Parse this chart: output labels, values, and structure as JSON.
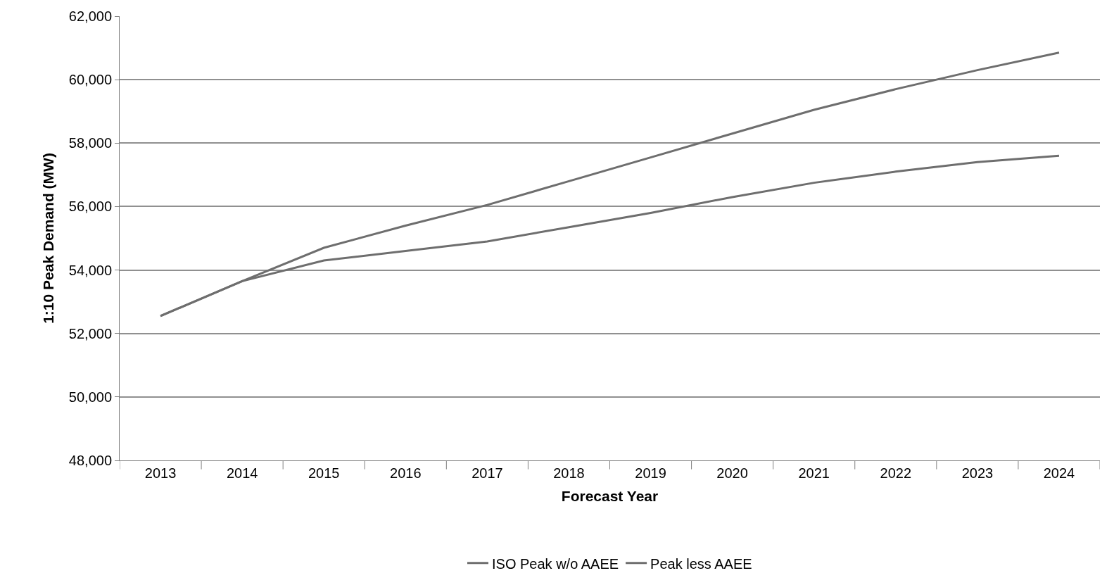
{
  "chart_data": {
    "type": "line",
    "xlabel": "Forecast Year",
    "ylabel": "1:10 Peak Demand (MW)",
    "categories": [
      "2013",
      "2014",
      "2015",
      "2016",
      "2017",
      "2018",
      "2019",
      "2020",
      "2021",
      "2022",
      "2023",
      "2024"
    ],
    "series": [
      {
        "name": "ISO Peak w/o AAEE",
        "color": "#6e6e6e",
        "values": [
          52550,
          53650,
          54700,
          55400,
          56050,
          56800,
          57550,
          58300,
          59050,
          59700,
          60300,
          60850
        ]
      },
      {
        "name": "Peak less AAEE",
        "color": "#6e6e6e",
        "values": [
          52550,
          53650,
          54300,
          54600,
          54900,
          55350,
          55800,
          56300,
          56750,
          57100,
          57400,
          57600
        ]
      }
    ],
    "ylim": [
      48000,
      62000
    ],
    "yticks": [
      {
        "value": 48000,
        "label": "48,000"
      },
      {
        "value": 50000,
        "label": "50,000"
      },
      {
        "value": 52000,
        "label": "52,000"
      },
      {
        "value": 54000,
        "label": "54,000"
      },
      {
        "value": 56000,
        "label": "56,000"
      },
      {
        "value": 58000,
        "label": "58,000"
      },
      {
        "value": 60000,
        "label": "60,000"
      },
      {
        "value": 62000,
        "label": "62,000"
      }
    ],
    "grid": "y",
    "legend": "bottom",
    "marker": "none",
    "line_style": "solid"
  }
}
